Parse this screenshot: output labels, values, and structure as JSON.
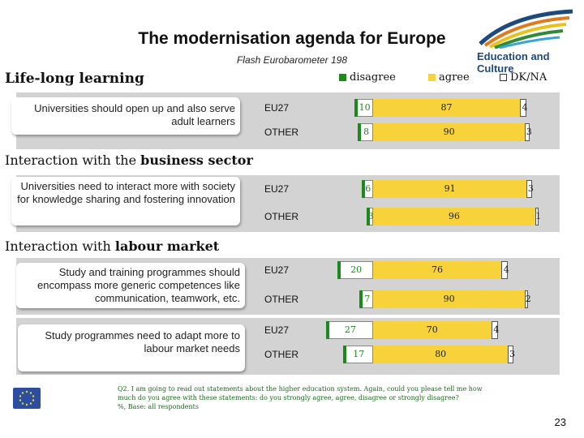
{
  "header": {
    "title": "The modernisation agenda for Europe",
    "subtitle": "Flash Eurobarometer 198",
    "logo_text": "Education and Culture"
  },
  "legend": [
    {
      "label": "disagree",
      "color": "#1a8a1a"
    },
    {
      "label": "agree",
      "color": "#f7d23a"
    },
    {
      "label": "DK/NA",
      "color": "#ffffff"
    }
  ],
  "sections": [
    {
      "heading_plain": "",
      "heading_bold": "Life-long learning"
    },
    {
      "heading_plain": "Interaction with the ",
      "heading_bold": "business sector"
    },
    {
      "heading_plain": "Interaction with ",
      "heading_bold": "labour market"
    }
  ],
  "questions": [
    {
      "text": "Universities should open up and also serve adult learners"
    },
    {
      "text": "Universities need to interact more with society for knowledge sharing and fostering innovation"
    },
    {
      "text": "Study and training programmes should encompass more generic competences like communication, teamwork, etc."
    },
    {
      "text": "Study programmes need to adapt more to labour market needs"
    }
  ],
  "chart_data": {
    "type": "bar",
    "stacked": true,
    "orientation": "horizontal",
    "segments": [
      "disagree",
      "agree",
      "DK/NA"
    ],
    "rows": [
      {
        "question": 0,
        "group": "EU27",
        "disagree": 10,
        "agree": 87,
        "dkna": 4
      },
      {
        "question": 0,
        "group": "OTHER",
        "disagree": 8,
        "agree": 90,
        "dkna": 3
      },
      {
        "question": 1,
        "group": "EU27",
        "disagree": 6,
        "agree": 91,
        "dkna": 3
      },
      {
        "question": 1,
        "group": "OTHER",
        "disagree": 3,
        "agree": 96,
        "dkna": 1
      },
      {
        "question": 2,
        "group": "EU27",
        "disagree": 20,
        "agree": 76,
        "dkna": 4
      },
      {
        "question": 2,
        "group": "OTHER",
        "disagree": 7,
        "agree": 90,
        "dkna": 2
      },
      {
        "question": 3,
        "group": "EU27",
        "disagree": 27,
        "agree": 70,
        "dkna": 4
      },
      {
        "question": 3,
        "group": "OTHER",
        "disagree": 17,
        "agree": 80,
        "dkna": 3
      }
    ]
  },
  "footer": {
    "note_line1": "Q2. I am going to read out statements about the higher education system. Again, could you please tell me how much do you agree with these statements: do you strongly agree, agree, disagree or strongly disagree?",
    "note_line2": "%, Base: all respondents",
    "page_number": "23"
  }
}
